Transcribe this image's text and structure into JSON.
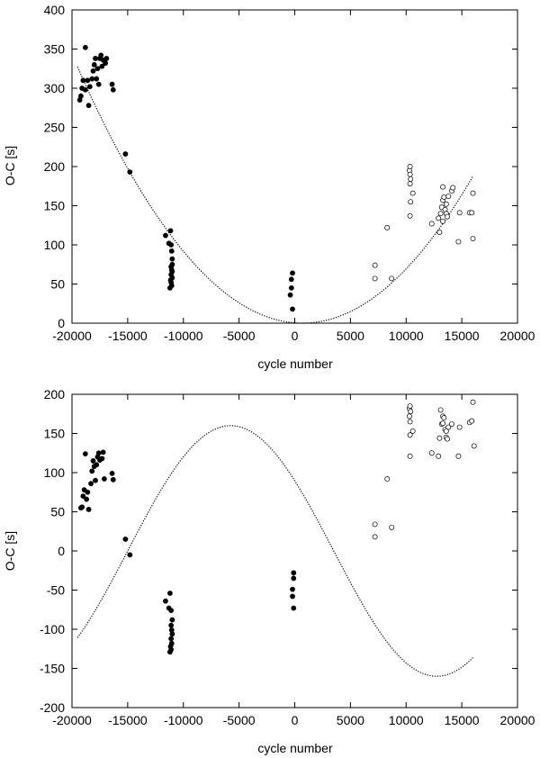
{
  "chart_data": [
    {
      "type": "scatter",
      "title": "",
      "xlabel": "cycle number",
      "ylabel": "O-C [s]",
      "xlim": [
        -20000,
        20000
      ],
      "ylim": [
        0,
        400
      ],
      "xticks": [
        -20000,
        -15000,
        -10000,
        -5000,
        0,
        5000,
        10000,
        15000,
        20000
      ],
      "yticks": [
        0,
        50,
        100,
        150,
        200,
        250,
        300,
        350,
        400
      ],
      "grid": false,
      "series": [
        {
          "name": "filled-points",
          "marker": "filled-circle",
          "points": [
            [
              -18800,
              352
            ],
            [
              -19100,
              300
            ],
            [
              -19200,
              290
            ],
            [
              -19300,
              285
            ],
            [
              -19000,
              310
            ],
            [
              -18800,
              298
            ],
            [
              -18600,
              310
            ],
            [
              -18500,
              278
            ],
            [
              -18400,
              302
            ],
            [
              -18200,
              312
            ],
            [
              -18100,
              322
            ],
            [
              -18000,
              330
            ],
            [
              -17900,
              338
            ],
            [
              -17800,
              312
            ],
            [
              -17700,
              325
            ],
            [
              -17600,
              305
            ],
            [
              -17500,
              338
            ],
            [
              -17400,
              342
            ],
            [
              -17300,
              328
            ],
            [
              -17200,
              336
            ],
            [
              -17000,
              332
            ],
            [
              -16900,
              338
            ],
            [
              -16400,
              305
            ],
            [
              -16300,
              298
            ],
            [
              -15200,
              216
            ],
            [
              -14800,
              193
            ],
            [
              -11600,
              112
            ],
            [
              -11300,
              102
            ],
            [
              -11150,
              118
            ],
            [
              -11100,
              100
            ],
            [
              -11050,
              92
            ],
            [
              -11000,
              82
            ],
            [
              -11100,
              72
            ],
            [
              -11050,
              68
            ],
            [
              -11000,
              66
            ],
            [
              -11100,
              62
            ],
            [
              -11000,
              58
            ],
            [
              -11150,
              55
            ],
            [
              -11100,
              52
            ],
            [
              -11050,
              48
            ],
            [
              -11200,
              45
            ],
            [
              -11000,
              75
            ],
            [
              -300,
              56
            ],
            [
              -200,
              64
            ],
            [
              -300,
              45
            ],
            [
              -400,
              36
            ],
            [
              -200,
              18
            ]
          ]
        },
        {
          "name": "open-points",
          "marker": "open-circle",
          "points": [
            [
              7200,
              74
            ],
            [
              7200,
              57
            ],
            [
              8300,
              122
            ],
            [
              8700,
              57
            ],
            [
              10300,
              195
            ],
            [
              10350,
              200
            ],
            [
              10350,
              190
            ],
            [
              10400,
              184
            ],
            [
              10350,
              178
            ],
            [
              10400,
              155
            ],
            [
              10350,
              137
            ],
            [
              10600,
              166
            ],
            [
              12300,
              127
            ],
            [
              12900,
              134
            ],
            [
              13000,
              116
            ],
            [
              13100,
              140
            ],
            [
              13200,
              148
            ],
            [
              13300,
              130
            ],
            [
              13300,
              157
            ],
            [
              13300,
              174
            ],
            [
              13400,
              161
            ],
            [
              13500,
              145
            ],
            [
              13600,
              152
            ],
            [
              13600,
              140
            ],
            [
              13800,
              162
            ],
            [
              13700,
              136
            ],
            [
              14100,
              169
            ],
            [
              14200,
              173
            ],
            [
              14700,
              104
            ],
            [
              14800,
              141
            ],
            [
              15700,
              141
            ],
            [
              15900,
              141
            ],
            [
              16000,
              108
            ],
            [
              16000,
              166
            ]
          ]
        }
      ],
      "model_curve": {
        "name": "parabolic fit",
        "style": "dotted",
        "x_range": [
          -19500,
          16000
        ],
        "form": "a*(x-x0)^2",
        "a": 8.02e-07,
        "x0": 700
      }
    },
    {
      "type": "scatter",
      "title": "",
      "xlabel": "cycle number",
      "ylabel": "O-C [s]",
      "xlim": [
        -20000,
        20000
      ],
      "ylim": [
        -200,
        200
      ],
      "xticks": [
        -20000,
        -15000,
        -10000,
        -5000,
        0,
        5000,
        10000,
        15000,
        20000
      ],
      "yticks": [
        -200,
        -150,
        -100,
        -50,
        0,
        50,
        100,
        150,
        200
      ],
      "grid": false,
      "series": [
        {
          "name": "filled-points",
          "marker": "filled-circle",
          "points": [
            [
              -18800,
              124
            ],
            [
              -19100,
              56
            ],
            [
              -19200,
              55
            ],
            [
              -19000,
              70
            ],
            [
              -18900,
              78
            ],
            [
              -18700,
              66
            ],
            [
              -18600,
              75
            ],
            [
              -18500,
              53
            ],
            [
              -18300,
              86
            ],
            [
              -18200,
              102
            ],
            [
              -18100,
              115
            ],
            [
              -18000,
              108
            ],
            [
              -17900,
              90
            ],
            [
              -17800,
              110
            ],
            [
              -17700,
              120
            ],
            [
              -17600,
              125
            ],
            [
              -17500,
              116
            ],
            [
              -17300,
              118
            ],
            [
              -17200,
              126
            ],
            [
              -17100,
              92
            ],
            [
              -16400,
              99
            ],
            [
              -16300,
              91
            ],
            [
              -15200,
              15
            ],
            [
              -14800,
              -5
            ],
            [
              -11600,
              -64
            ],
            [
              -11300,
              -73
            ],
            [
              -11200,
              -54
            ],
            [
              -11100,
              -76
            ],
            [
              -11000,
              -88
            ],
            [
              -11100,
              -95
            ],
            [
              -11050,
              -101
            ],
            [
              -11000,
              -106
            ],
            [
              -11100,
              -112
            ],
            [
              -11050,
              -118
            ],
            [
              -11150,
              -122
            ],
            [
              -11100,
              -126
            ],
            [
              -11200,
              -129
            ],
            [
              -100,
              -28
            ],
            [
              -100,
              -35
            ],
            [
              -200,
              -49
            ],
            [
              -200,
              -58
            ],
            [
              -100,
              -73
            ]
          ]
        },
        {
          "name": "open-points",
          "marker": "open-circle",
          "points": [
            [
              7200,
              34
            ],
            [
              7200,
              18
            ],
            [
              8300,
              92
            ],
            [
              8700,
              30
            ],
            [
              10300,
              182
            ],
            [
              10350,
              185
            ],
            [
              10400,
              178
            ],
            [
              10300,
              172
            ],
            [
              10350,
              165
            ],
            [
              10350,
              148
            ],
            [
              10350,
              121
            ],
            [
              10600,
              153
            ],
            [
              12300,
              125
            ],
            [
              12900,
              121
            ],
            [
              13000,
              144
            ],
            [
              13100,
              180
            ],
            [
              13200,
              162
            ],
            [
              13300,
              163
            ],
            [
              13300,
              172
            ],
            [
              13400,
              170
            ],
            [
              13500,
              155
            ],
            [
              13600,
              153
            ],
            [
              13600,
              145
            ],
            [
              13700,
              143
            ],
            [
              13800,
              158
            ],
            [
              14100,
              162
            ],
            [
              14700,
              121
            ],
            [
              14800,
              158
            ],
            [
              15700,
              164
            ],
            [
              15900,
              166
            ],
            [
              16000,
              190
            ],
            [
              16100,
              134
            ]
          ]
        }
      ],
      "model_curve": {
        "name": "sinusoidal fit",
        "style": "dotted",
        "x_range": [
          -19500,
          16000
        ],
        "form": "A*sin(2*pi*(x - x0)/P) + B",
        "A": 160,
        "B": 0,
        "P": 37000,
        "x0": -15000
      }
    }
  ]
}
